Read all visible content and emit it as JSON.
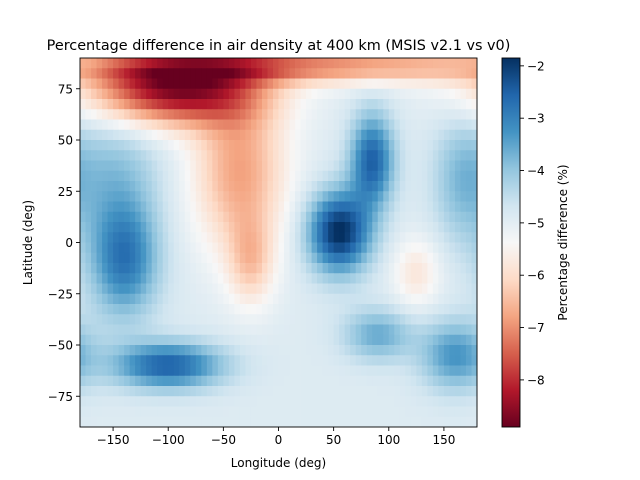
{
  "chart_data": {
    "type": "heatmap",
    "title": "Percentage difference in air density at 400 km (MSIS v2.1 vs v0)",
    "xlabel": "Longitude (deg)",
    "ylabel": "Latitude (deg)",
    "xlim": [
      -180,
      180
    ],
    "ylim": [
      -90,
      90
    ],
    "xticks": [
      -150,
      -100,
      -50,
      0,
      50,
      100,
      150
    ],
    "yticks": [
      -75,
      -50,
      -25,
      0,
      25,
      50,
      75
    ],
    "xtick_labels": [
      "−150",
      "−100",
      "−50",
      "0",
      "50",
      "100",
      "150"
    ],
    "ytick_labels": [
      "−75",
      "−50",
      "−25",
      "0",
      "25",
      "50",
      "75"
    ],
    "colorbar": {
      "label": "Percentage difference (%)",
      "min": -8.9,
      "max": -1.85,
      "ticks": [
        -8,
        -7,
        -6,
        -5,
        -4,
        -3,
        -2
      ],
      "tick_labels": [
        "−8",
        "−7",
        "−6",
        "−5",
        "−4",
        "−3",
        "−2"
      ],
      "colormap": "RdBu"
    },
    "grid_resolution_deg": 5,
    "features": [
      {
        "lon": -95,
        "lat": 72,
        "value": -8.85,
        "description": "strong negative maximum"
      },
      {
        "lon": 55,
        "lat": 5,
        "value": -1.85,
        "description": "strongest positive region"
      },
      {
        "lon": 85,
        "lat": 40,
        "value": -2.4
      },
      {
        "lon": -140,
        "lat": -10,
        "value": -2.9
      },
      {
        "lon": -100,
        "lat": -60,
        "value": -2.4
      },
      {
        "lon": 160,
        "lat": -55,
        "value": -3.1
      },
      {
        "lon": 90,
        "lat": -45,
        "value": -3.5
      },
      {
        "lon": -30,
        "lat": -20,
        "value": -6.3
      },
      {
        "lon": 125,
        "lat": -15,
        "value": -5.9
      }
    ],
    "grid": false
  }
}
